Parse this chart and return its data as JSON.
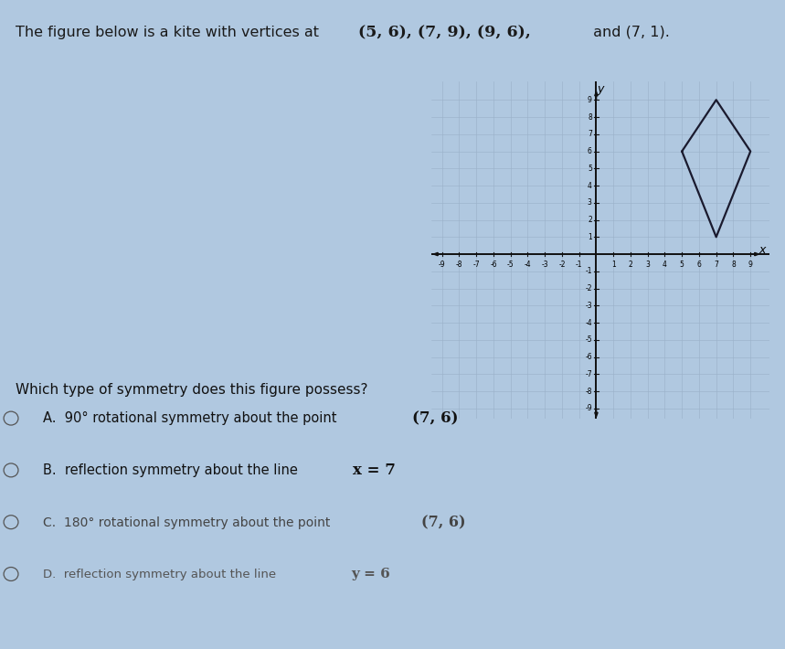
{
  "kite_vertices_x": [
    5,
    7,
    9,
    7,
    5
  ],
  "kite_vertices_y": [
    6,
    9,
    6,
    1,
    6
  ],
  "grid_xlim": [
    -9,
    9
  ],
  "grid_ylim": [
    -9,
    9
  ],
  "grid_color": "#9ab0c8",
  "kite_color": "#1a1a2e",
  "kite_linewidth": 1.6,
  "background_color": "#c2d8ee",
  "figure_bg": "#b0c8e0",
  "axis_color": "#111111",
  "question_text": "Which type of symmetry does this figure possess?",
  "option_A": "A.  90° rotational symmetry about the point (7, 6)",
  "option_B": "B.  reflection symmetry about the line x = 7",
  "option_C": "C.  180° rotational symmetry about the point (7, 6)",
  "option_D": "D.  reflection symmetry about the line y = 6",
  "title_plain": "The figure below is a kite with vertices at ",
  "title_coords": "(5, 6), (7, 9), (9, 6), and (7, 1)."
}
